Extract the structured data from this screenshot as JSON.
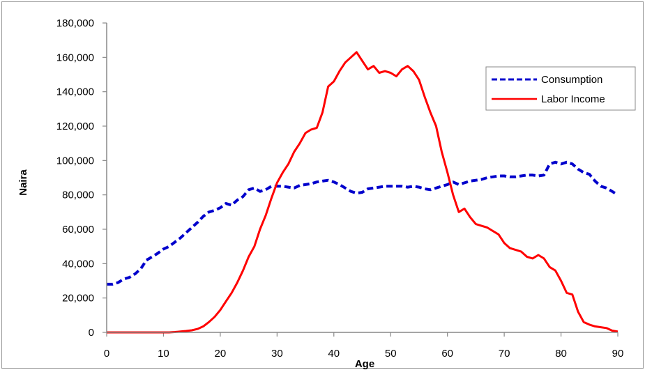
{
  "chart_data": {
    "type": "line",
    "title": "",
    "xlabel": "Age",
    "ylabel": "Naira",
    "xlim": [
      0,
      90
    ],
    "ylim": [
      0,
      180000
    ],
    "x_ticks": [
      "0",
      "10",
      "20",
      "30",
      "40",
      "50",
      "60",
      "70",
      "80",
      "90"
    ],
    "y_ticks": [
      "0",
      "20,000",
      "40,000",
      "60,000",
      "80,000",
      "100,000",
      "120,000",
      "140,000",
      "160,000",
      "180,000"
    ],
    "grid": false,
    "legend_position": "top-right",
    "series": [
      {
        "name": "Consumption",
        "color": "#0000cc",
        "style": "dashed",
        "x": [
          0,
          1,
          2,
          3,
          4,
          5,
          6,
          7,
          8,
          9,
          10,
          11,
          12,
          13,
          14,
          15,
          16,
          17,
          18,
          19,
          20,
          21,
          22,
          23,
          24,
          25,
          26,
          27,
          28,
          29,
          30,
          31,
          32,
          33,
          34,
          35,
          36,
          37,
          38,
          39,
          40,
          41,
          42,
          43,
          44,
          45,
          46,
          47,
          48,
          49,
          50,
          51,
          52,
          53,
          54,
          55,
          56,
          57,
          58,
          59,
          60,
          61,
          62,
          63,
          64,
          65,
          66,
          67,
          68,
          69,
          70,
          71,
          72,
          73,
          74,
          75,
          76,
          77,
          78,
          79,
          80,
          81,
          82,
          83,
          84,
          85,
          86,
          87,
          88,
          89,
          90
        ],
        "values": [
          28000,
          28000,
          29000,
          31000,
          32000,
          34000,
          37000,
          42000,
          44000,
          46000,
          48500,
          50000,
          52500,
          55000,
          58000,
          61000,
          64000,
          67500,
          70000,
          71000,
          72500,
          75000,
          74000,
          77000,
          79000,
          83000,
          84000,
          82000,
          83000,
          85000,
          85000,
          85000,
          84500,
          84000,
          85500,
          86000,
          86500,
          87500,
          88000,
          88500,
          87500,
          86000,
          84000,
          82000,
          81000,
          81500,
          83500,
          84000,
          84500,
          85000,
          85000,
          85000,
          85000,
          84500,
          85000,
          84500,
          83500,
          83000,
          84000,
          85000,
          86000,
          87500,
          86000,
          87000,
          88000,
          88500,
          89000,
          90000,
          90500,
          91000,
          91000,
          90500,
          90500,
          91000,
          91500,
          91500,
          91000,
          91500,
          98000,
          99000,
          98000,
          99000,
          98000,
          95000,
          93000,
          92000,
          88000,
          85000,
          84000,
          82000,
          80000
        ]
      },
      {
        "name": "Labor Income",
        "color": "#ff0000",
        "style": "solid",
        "x": [
          0,
          1,
          2,
          3,
          4,
          5,
          6,
          7,
          8,
          9,
          10,
          11,
          12,
          13,
          14,
          15,
          16,
          17,
          18,
          19,
          20,
          21,
          22,
          23,
          24,
          25,
          26,
          27,
          28,
          29,
          30,
          31,
          32,
          33,
          34,
          35,
          36,
          37,
          38,
          39,
          40,
          41,
          42,
          43,
          44,
          45,
          46,
          47,
          48,
          49,
          50,
          51,
          52,
          53,
          54,
          55,
          56,
          57,
          58,
          59,
          60,
          61,
          62,
          63,
          64,
          65,
          66,
          67,
          68,
          69,
          70,
          71,
          72,
          73,
          74,
          75,
          76,
          77,
          78,
          79,
          80,
          81,
          82,
          83,
          84,
          85,
          86,
          87,
          88,
          89,
          90
        ],
        "values": [
          0,
          0,
          0,
          0,
          0,
          0,
          0,
          0,
          0,
          0,
          0,
          0,
          200,
          500,
          800,
          1200,
          2000,
          3500,
          6000,
          9000,
          13000,
          18000,
          23000,
          29000,
          36000,
          44000,
          50000,
          60000,
          68000,
          78000,
          87000,
          93000,
          98000,
          105000,
          110000,
          116000,
          118000,
          119000,
          128000,
          143000,
          146000,
          152000,
          157000,
          160000,
          163000,
          158000,
          153000,
          155000,
          151000,
          152000,
          151000,
          149000,
          153000,
          155000,
          152000,
          147000,
          137000,
          128000,
          120000,
          105000,
          93000,
          80000,
          70000,
          72000,
          67000,
          63000,
          62000,
          61000,
          59000,
          57000,
          52000,
          49000,
          48000,
          47000,
          44000,
          43000,
          45000,
          43000,
          38000,
          36000,
          30000,
          23000,
          22000,
          12000,
          6000,
          4500,
          3500,
          3000,
          2500,
          1000,
          500
        ]
      }
    ]
  }
}
